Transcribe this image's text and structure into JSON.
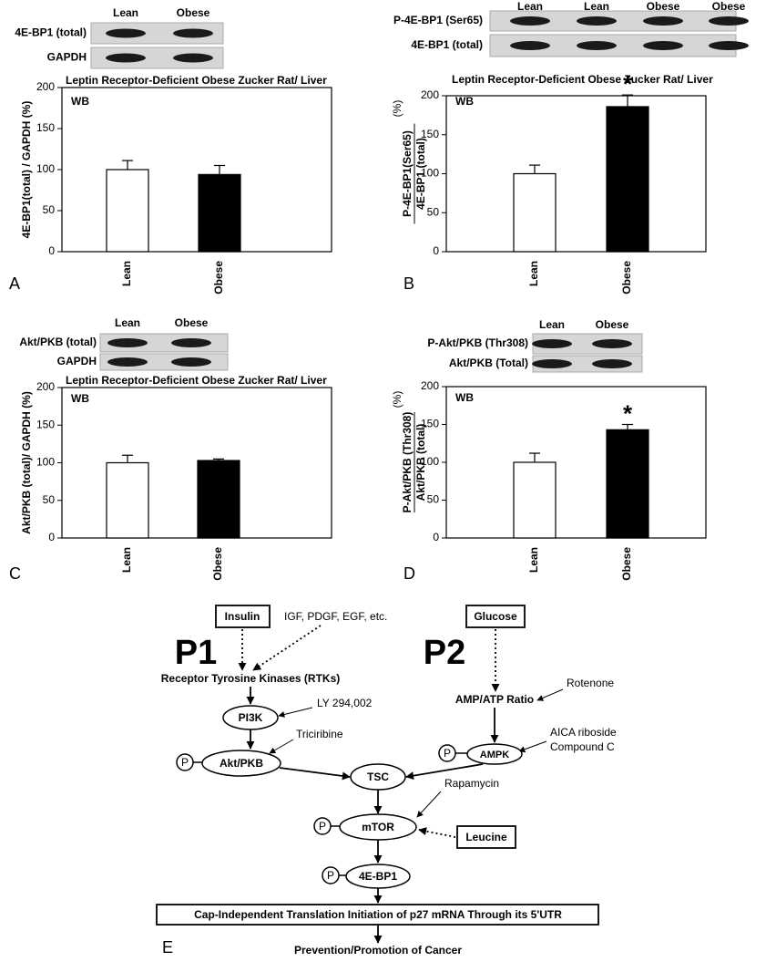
{
  "chart_data": [
    {
      "type": "bar",
      "panel_label": "A",
      "title": "Leptin Receptor-Deficient Obese Zucker Rat/ Liver",
      "annotation": "WB",
      "ylabel": "4E-BP1(total) / GAPDH (%)",
      "categories": [
        "Lean",
        "Obese"
      ],
      "values": [
        100,
        94
      ],
      "errors": [
        11,
        11
      ],
      "colors": [
        "#ffffff",
        "#000000"
      ],
      "markers": [
        null,
        null
      ],
      "ylim": [
        0,
        200
      ],
      "yticks": [
        0,
        50,
        100,
        150,
        200
      ],
      "blot": {
        "lanes": [
          "Lean",
          "Obese"
        ],
        "rows": [
          "4E-BP1 (total)",
          "GAPDH"
        ]
      }
    },
    {
      "type": "bar",
      "panel_label": "B",
      "title": "Leptin Receptor-Deficient Obese Zucker Rat/ Liver",
      "annotation": "WB",
      "ylabel": [
        "P-4E-BP1(Ser65)",
        "4E-BP1 (total)"
      ],
      "ylabel_unit": "(%)",
      "categories": [
        "Lean",
        "Obese"
      ],
      "values": [
        100,
        186
      ],
      "errors": [
        11,
        15
      ],
      "colors": [
        "#ffffff",
        "#000000"
      ],
      "markers": [
        null,
        "*"
      ],
      "ylim": [
        0,
        200
      ],
      "yticks": [
        0,
        50,
        100,
        150,
        200
      ],
      "blot": {
        "lanes": [
          "Lean",
          "Lean",
          "Obese",
          "Obese"
        ],
        "rows": [
          "P-4E-BP1 (Ser65)",
          "4E-BP1 (total)"
        ]
      }
    },
    {
      "type": "bar",
      "panel_label": "C",
      "title": "Leptin Receptor-Deficient Obese Zucker Rat/ Liver",
      "annotation": "WB",
      "ylabel": "Akt/PKB (total)/ GAPDH (%)",
      "categories": [
        "Lean",
        "Obese"
      ],
      "values": [
        100,
        103
      ],
      "errors": [
        10,
        2
      ],
      "colors": [
        "#ffffff",
        "#000000"
      ],
      "markers": [
        null,
        null
      ],
      "ylim": [
        0,
        200
      ],
      "yticks": [
        0,
        50,
        100,
        150,
        200
      ],
      "blot": {
        "lanes": [
          "Lean",
          "Obese"
        ],
        "rows": [
          "Akt/PKB (total)",
          "GAPDH"
        ]
      }
    },
    {
      "type": "bar",
      "panel_label": "D",
      "annotation": "WB",
      "ylabel": [
        "P-Akt/PKB (Thr308)",
        "Akt/PKB (total)"
      ],
      "ylabel_unit": "(%)",
      "categories": [
        "Lean",
        "Obese"
      ],
      "values": [
        100,
        143
      ],
      "errors": [
        12,
        7
      ],
      "colors": [
        "#ffffff",
        "#000000"
      ],
      "markers": [
        null,
        "*"
      ],
      "ylim": [
        0,
        200
      ],
      "yticks": [
        0,
        50,
        100,
        150,
        200
      ],
      "blot": {
        "lanes": [
          "Lean",
          "Obese"
        ],
        "rows": [
          "P-Akt/PKB (Thr308)",
          "Akt/PKB (Total)"
        ]
      }
    }
  ],
  "diagram": {
    "panel_label": "E",
    "pathways": [
      "P1",
      "P2"
    ],
    "phospho": "P",
    "nodes": [
      "Insulin",
      "Glucose",
      "Receptor Tyrosine Kinases (RTKs)",
      "PI3K",
      "Akt/PKB",
      "AMP/ATP Ratio",
      "AMPK",
      "TSC",
      "mTOR",
      "Leucine",
      "4E-BP1",
      "Cap-Independent Translation Initiation of p27 mRNA Through its 5'UTR",
      "Prevention/Promotion of Cancer"
    ],
    "agents": [
      "IGF, PDGF, EGF, etc.",
      "LY 294,002",
      "Triciribine",
      "Rotenone",
      "AICA riboside",
      "Compound C",
      "Rapamycin"
    ]
  }
}
